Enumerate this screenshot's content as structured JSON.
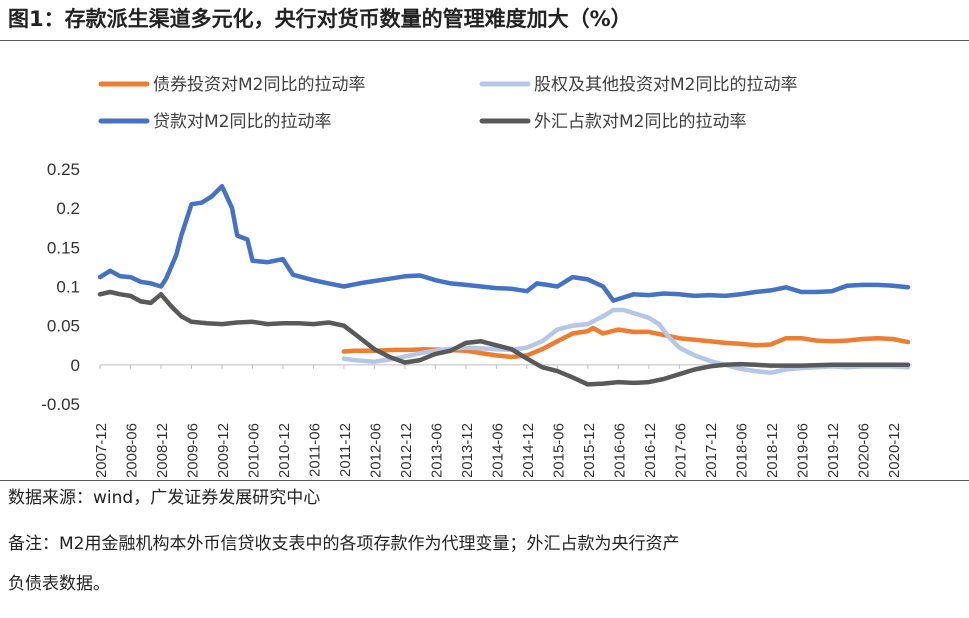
{
  "figure": {
    "title": "图1：存款派生渠道多元化，央行对货币数量的管理难度加大（%）",
    "source": "数据来源：wind，广发证券发展研究中心",
    "note_line1": "备注：M2用金融机构本外币信贷收支表中的各项存款作为代理变量；外汇占款为央行资产",
    "note_line2": "负债表数据。"
  },
  "chart_data": {
    "type": "line",
    "title": "存款派生渠道多元化，央行对货币数量的管理难度加大（%）",
    "xlabel": "",
    "ylabel": "",
    "ylim": [
      -0.05,
      0.25
    ],
    "yticks": [
      -0.05,
      0,
      0.05,
      0.1,
      0.15,
      0.2,
      0.25
    ],
    "ytick_labels": [
      "-0.05",
      "0",
      "0.05",
      "0.1",
      "0.15",
      "0.2",
      "0.25"
    ],
    "grid": false,
    "legend_position": "top",
    "x_start": "2007-12",
    "x_end": "2021-03",
    "x_ticks": [
      "2007-12",
      "2008-06",
      "2008-12",
      "2009-06",
      "2009-12",
      "2010-06",
      "2010-12",
      "2011-06",
      "2011-12",
      "2012-06",
      "2012-12",
      "2013-06",
      "2013-12",
      "2014-06",
      "2014-12",
      "2015-06",
      "2015-12",
      "2016-06",
      "2016-12",
      "2017-06",
      "2017-12",
      "2018-06",
      "2018-12",
      "2019-06",
      "2019-12",
      "2020-06",
      "2020-12"
    ],
    "series": [
      {
        "name": "债券投资对M2同比的拉动率",
        "color": "#ED7D31",
        "points": [
          [
            "2011-12",
            0.017
          ],
          [
            "2012-02",
            0.018
          ],
          [
            "2012-06",
            0.018
          ],
          [
            "2012-10",
            0.019
          ],
          [
            "2013-01",
            0.019
          ],
          [
            "2013-04",
            0.02
          ],
          [
            "2013-08",
            0.019
          ],
          [
            "2013-12",
            0.018
          ],
          [
            "2014-03",
            0.015
          ],
          [
            "2014-06",
            0.012
          ],
          [
            "2014-09",
            0.01
          ],
          [
            "2014-12",
            0.012
          ],
          [
            "2015-03",
            0.02
          ],
          [
            "2015-06",
            0.03
          ],
          [
            "2015-09",
            0.04
          ],
          [
            "2015-12",
            0.043
          ],
          [
            "2016-01",
            0.047
          ],
          [
            "2016-03",
            0.04
          ],
          [
            "2016-06",
            0.045
          ],
          [
            "2016-09",
            0.042
          ],
          [
            "2016-12",
            0.042
          ],
          [
            "2017-03",
            0.038
          ],
          [
            "2017-06",
            0.034
          ],
          [
            "2017-09",
            0.032
          ],
          [
            "2017-12",
            0.03
          ],
          [
            "2018-03",
            0.028
          ],
          [
            "2018-06",
            0.027
          ],
          [
            "2018-09",
            0.025
          ],
          [
            "2018-12",
            0.026
          ],
          [
            "2019-03",
            0.034
          ],
          [
            "2019-06",
            0.034
          ],
          [
            "2019-09",
            0.031
          ],
          [
            "2019-12",
            0.03
          ],
          [
            "2020-03",
            0.031
          ],
          [
            "2020-06",
            0.033
          ],
          [
            "2020-09",
            0.034
          ],
          [
            "2020-12",
            0.033
          ],
          [
            "2021-03",
            0.029
          ]
        ]
      },
      {
        "name": "股权及其他投资对M2同比的拉动率",
        "color": "#B4C7E7",
        "points": [
          [
            "2011-12",
            0.008
          ],
          [
            "2012-02",
            0.006
          ],
          [
            "2012-06",
            0.004
          ],
          [
            "2012-10",
            0.008
          ],
          [
            "2013-01",
            0.012
          ],
          [
            "2013-04",
            0.016
          ],
          [
            "2013-08",
            0.02
          ],
          [
            "2013-12",
            0.022
          ],
          [
            "2014-03",
            0.021
          ],
          [
            "2014-06",
            0.02
          ],
          [
            "2014-09",
            0.019
          ],
          [
            "2014-12",
            0.022
          ],
          [
            "2015-03",
            0.03
          ],
          [
            "2015-06",
            0.045
          ],
          [
            "2015-09",
            0.05
          ],
          [
            "2015-12",
            0.052
          ],
          [
            "2016-03",
            0.062
          ],
          [
            "2016-05",
            0.07
          ],
          [
            "2016-07",
            0.07
          ],
          [
            "2016-09",
            0.066
          ],
          [
            "2016-12",
            0.06
          ],
          [
            "2017-02",
            0.052
          ],
          [
            "2017-04",
            0.035
          ],
          [
            "2017-06",
            0.022
          ],
          [
            "2017-09",
            0.012
          ],
          [
            "2017-12",
            0.005
          ],
          [
            "2018-03",
            0.0
          ],
          [
            "2018-06",
            -0.005
          ],
          [
            "2018-09",
            -0.008
          ],
          [
            "2018-12",
            -0.01
          ],
          [
            "2019-03",
            -0.006
          ],
          [
            "2019-06",
            -0.004
          ],
          [
            "2019-09",
            -0.003
          ],
          [
            "2019-12",
            -0.002
          ],
          [
            "2020-03",
            -0.003
          ],
          [
            "2020-06",
            -0.002
          ],
          [
            "2020-09",
            -0.002
          ],
          [
            "2020-12",
            -0.002
          ],
          [
            "2021-03",
            -0.003
          ]
        ]
      },
      {
        "name": "贷款对M2同比的拉动率",
        "color": "#4472C4",
        "points": [
          [
            "2007-12",
            0.112
          ],
          [
            "2008-02",
            0.12
          ],
          [
            "2008-04",
            0.113
          ],
          [
            "2008-06",
            0.112
          ],
          [
            "2008-08",
            0.106
          ],
          [
            "2008-10",
            0.104
          ],
          [
            "2008-12",
            0.1
          ],
          [
            "2009-01",
            0.11
          ],
          [
            "2009-03",
            0.14
          ],
          [
            "2009-04",
            0.165
          ],
          [
            "2009-06",
            0.205
          ],
          [
            "2009-08",
            0.207
          ],
          [
            "2009-10",
            0.215
          ],
          [
            "2009-12",
            0.228
          ],
          [
            "2010-02",
            0.2
          ],
          [
            "2010-03",
            0.165
          ],
          [
            "2010-05",
            0.16
          ],
          [
            "2010-06",
            0.133
          ],
          [
            "2010-09",
            0.131
          ],
          [
            "2010-12",
            0.135
          ],
          [
            "2011-02",
            0.115
          ],
          [
            "2011-06",
            0.108
          ],
          [
            "2011-09",
            0.104
          ],
          [
            "2011-12",
            0.1
          ],
          [
            "2012-03",
            0.104
          ],
          [
            "2012-06",
            0.107
          ],
          [
            "2012-09",
            0.11
          ],
          [
            "2012-12",
            0.113
          ],
          [
            "2013-03",
            0.114
          ],
          [
            "2013-06",
            0.108
          ],
          [
            "2013-09",
            0.104
          ],
          [
            "2013-12",
            0.102
          ],
          [
            "2014-03",
            0.1
          ],
          [
            "2014-06",
            0.098
          ],
          [
            "2014-09",
            0.097
          ],
          [
            "2014-12",
            0.094
          ],
          [
            "2015-02",
            0.104
          ],
          [
            "2015-04",
            0.102
          ],
          [
            "2015-06",
            0.1
          ],
          [
            "2015-09",
            0.112
          ],
          [
            "2015-12",
            0.109
          ],
          [
            "2016-03",
            0.1
          ],
          [
            "2016-05",
            0.082
          ],
          [
            "2016-07",
            0.086
          ],
          [
            "2016-09",
            0.09
          ],
          [
            "2016-12",
            0.089
          ],
          [
            "2017-03",
            0.091
          ],
          [
            "2017-06",
            0.09
          ],
          [
            "2017-09",
            0.088
          ],
          [
            "2017-12",
            0.089
          ],
          [
            "2018-03",
            0.088
          ],
          [
            "2018-06",
            0.09
          ],
          [
            "2018-09",
            0.093
          ],
          [
            "2018-12",
            0.095
          ],
          [
            "2019-03",
            0.099
          ],
          [
            "2019-06",
            0.093
          ],
          [
            "2019-09",
            0.093
          ],
          [
            "2019-12",
            0.094
          ],
          [
            "2020-03",
            0.101
          ],
          [
            "2020-06",
            0.102
          ],
          [
            "2020-09",
            0.102
          ],
          [
            "2020-12",
            0.101
          ],
          [
            "2021-03",
            0.099
          ]
        ]
      },
      {
        "name": "外汇占款对M2同比的拉动率",
        "color": "#595959",
        "points": [
          [
            "2007-12",
            0.09
          ],
          [
            "2008-02",
            0.093
          ],
          [
            "2008-04",
            0.09
          ],
          [
            "2008-06",
            0.088
          ],
          [
            "2008-08",
            0.081
          ],
          [
            "2008-10",
            0.079
          ],
          [
            "2008-12",
            0.09
          ],
          [
            "2009-02",
            0.075
          ],
          [
            "2009-04",
            0.062
          ],
          [
            "2009-06",
            0.055
          ],
          [
            "2009-09",
            0.053
          ],
          [
            "2009-12",
            0.052
          ],
          [
            "2010-03",
            0.054
          ],
          [
            "2010-06",
            0.055
          ],
          [
            "2010-09",
            0.052
          ],
          [
            "2010-12",
            0.053
          ],
          [
            "2011-03",
            0.053
          ],
          [
            "2011-06",
            0.052
          ],
          [
            "2011-09",
            0.054
          ],
          [
            "2011-12",
            0.05
          ],
          [
            "2012-03",
            0.035
          ],
          [
            "2012-06",
            0.02
          ],
          [
            "2012-09",
            0.01
          ],
          [
            "2012-12",
            0.003
          ],
          [
            "2013-03",
            0.006
          ],
          [
            "2013-06",
            0.014
          ],
          [
            "2013-09",
            0.018
          ],
          [
            "2013-12",
            0.028
          ],
          [
            "2014-03",
            0.03
          ],
          [
            "2014-06",
            0.025
          ],
          [
            "2014-09",
            0.02
          ],
          [
            "2014-12",
            0.008
          ],
          [
            "2015-03",
            -0.003
          ],
          [
            "2015-06",
            -0.008
          ],
          [
            "2015-09",
            -0.016
          ],
          [
            "2015-12",
            -0.025
          ],
          [
            "2016-03",
            -0.024
          ],
          [
            "2016-06",
            -0.022
          ],
          [
            "2016-09",
            -0.023
          ],
          [
            "2016-12",
            -0.022
          ],
          [
            "2017-03",
            -0.018
          ],
          [
            "2017-06",
            -0.012
          ],
          [
            "2017-09",
            -0.006
          ],
          [
            "2017-12",
            -0.002
          ],
          [
            "2018-03",
            0.0
          ],
          [
            "2018-06",
            0.001
          ],
          [
            "2018-09",
            0.0
          ],
          [
            "2018-12",
            -0.001
          ],
          [
            "2019-06",
            -0.001
          ],
          [
            "2019-12",
            0.0
          ],
          [
            "2020-06",
            0.0
          ],
          [
            "2020-12",
            0.0
          ],
          [
            "2021-03",
            0.0
          ]
        ]
      }
    ]
  }
}
